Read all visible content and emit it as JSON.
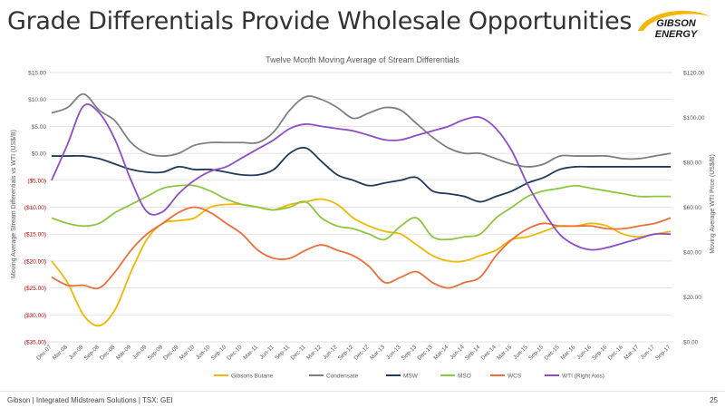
{
  "slide": {
    "title": "Grade Differentials Provide Wholesale Opportunities",
    "footer": "Gibson  |  Integrated Midstream Solutions  |  TSX: GEI",
    "page_number": "25"
  },
  "logo": {
    "line1": "GIBSON",
    "line2": "ENERGY",
    "colors": {
      "text": "#1a1a1a",
      "swoosh": "#f2b705"
    }
  },
  "chart_data": {
    "type": "line",
    "title": "Twelve Month Moving Average of Stream Differentials",
    "ylabel": "Moving Average Stream Differentials vs WTI (US$/B)",
    "y2label": "Moving Average WTI Price (US$/B)",
    "ylim": [
      -35,
      15
    ],
    "y2lim": [
      0,
      120
    ],
    "yticks": [
      15,
      10,
      5,
      0,
      -5,
      -10,
      -15,
      -20,
      -25,
      -30,
      -35
    ],
    "yticklabels": [
      "$15.00",
      "$10.00",
      "$5.00",
      "$0.00",
      "($5.00)",
      "($10.00)",
      "($15.00)",
      "($20.00)",
      "($25.00)",
      "($30.00)",
      "($35.00)"
    ],
    "y2ticks": [
      120,
      100,
      80,
      60,
      40,
      20,
      0
    ],
    "y2ticklabels": [
      "$120.00",
      "$100.00",
      "$80.00",
      "$60.00",
      "$40.00",
      "$20.00",
      "$0.00"
    ],
    "grid": true,
    "legend_position": "bottom",
    "colors": {
      "axis_text": "#595959",
      "grid": "#d9d9d9",
      "negative_tick": "#c00000"
    },
    "categories": [
      "Dec-07",
      "Mar-08",
      "Jun-08",
      "Sep-08",
      "Dec-08",
      "Mar-09",
      "Jun-09",
      "Sep-09",
      "Dec-09",
      "Mar-10",
      "Jun-10",
      "Sep-10",
      "Dec-10",
      "Mar-11",
      "Jun-11",
      "Sep-11",
      "Dec-11",
      "Mar-12",
      "Jun-12",
      "Sep-12",
      "Dec-12",
      "Mar-13",
      "Jun-13",
      "Sep-13",
      "Dec-13",
      "Mar-14",
      "Jun-14",
      "Sep-14",
      "Dec-14",
      "Mar-15",
      "Jun-15",
      "Sep-15",
      "Dec-15",
      "Mar-16",
      "Jun-16",
      "Sep-16",
      "Dec-16",
      "Mar-17",
      "Jun-17",
      "Sep-17"
    ],
    "series": [
      {
        "name": "Gibsons Butane",
        "color": "#f2b705",
        "axis": "left",
        "values": [
          -20,
          -24,
          -30,
          -32,
          -29,
          -22,
          -16,
          -13,
          -12.5,
          -12,
          -10,
          -9.5,
          -9.5,
          -10,
          -10.5,
          -9.5,
          -9,
          -8.5,
          -9.5,
          -12,
          -13.5,
          -14.5,
          -15,
          -17,
          -19,
          -20,
          -20,
          -19,
          -18,
          -16,
          -15.5,
          -14.5,
          -13.5,
          -13.5,
          -13,
          -13.5,
          -15,
          -15.5,
          -15,
          -14.5
        ]
      },
      {
        "name": "Condensate",
        "color": "#7f7f7f",
        "axis": "left",
        "values": [
          7.5,
          8.5,
          11,
          8,
          6,
          2,
          0,
          -0.5,
          0,
          1.5,
          2,
          2,
          2,
          2,
          4,
          8,
          10.5,
          10,
          8.5,
          6.5,
          7.5,
          8.5,
          8,
          5.5,
          3,
          1,
          0,
          0,
          -1,
          -2,
          -2.5,
          -2,
          -0.5,
          -0.5,
          -0.5,
          -0.5,
          -1,
          -1,
          -0.5,
          0
        ]
      },
      {
        "name": "MSW",
        "color": "#1f3a5f",
        "axis": "left",
        "values": [
          -0.5,
          -0.5,
          -0.5,
          -1,
          -2,
          -3,
          -3.5,
          -3.5,
          -2.5,
          -3,
          -3,
          -3.5,
          -4,
          -4,
          -3,
          0,
          1,
          -1.5,
          -4,
          -5,
          -6,
          -5.5,
          -5,
          -4.5,
          -7,
          -7.5,
          -8,
          -9,
          -8,
          -7,
          -5.5,
          -4.5,
          -3,
          -2.5,
          -2.5,
          -2.5,
          -2.5,
          -2.5,
          -2.5,
          -2.5
        ]
      },
      {
        "name": "MSO",
        "color": "#8dc63f",
        "axis": "left",
        "values": [
          -12,
          -13,
          -13.5,
          -13,
          -11,
          -9.5,
          -8,
          -6.5,
          -6,
          -6,
          -7,
          -8.5,
          -9.5,
          -10,
          -10.5,
          -10,
          -9,
          -12,
          -13.5,
          -14,
          -15,
          -16,
          -13.5,
          -12,
          -15.5,
          -16,
          -15.5,
          -15,
          -12,
          -10,
          -8,
          -7,
          -6.5,
          -6,
          -6.5,
          -7,
          -7.5,
          -8,
          -8,
          -8
        ]
      },
      {
        "name": "WCS",
        "color": "#e8703a",
        "axis": "left",
        "values": [
          -23,
          -24.5,
          -24.5,
          -25,
          -22,
          -18,
          -15,
          -13,
          -11,
          -10,
          -11,
          -13,
          -15,
          -18,
          -19.5,
          -19.5,
          -18,
          -17,
          -18,
          -19,
          -21,
          -24,
          -23,
          -22,
          -24,
          -25,
          -24,
          -23,
          -19,
          -16,
          -14,
          -13,
          -13.5,
          -13.5,
          -13.5,
          -14,
          -14,
          -13.5,
          -13,
          -12
        ]
      },
      {
        "name": "WTI (Right Axis)",
        "color": "#8e4dc7",
        "axis": "right",
        "values": [
          72,
          88,
          105,
          102,
          90,
          72,
          58,
          58,
          66,
          72,
          76,
          78,
          82,
          86,
          90,
          95,
          97,
          96,
          95,
          94,
          92,
          90,
          90,
          92,
          94,
          96,
          99,
          100,
          95,
          85,
          70,
          58,
          48,
          43,
          41,
          42,
          44,
          46,
          48,
          48
        ]
      }
    ]
  }
}
